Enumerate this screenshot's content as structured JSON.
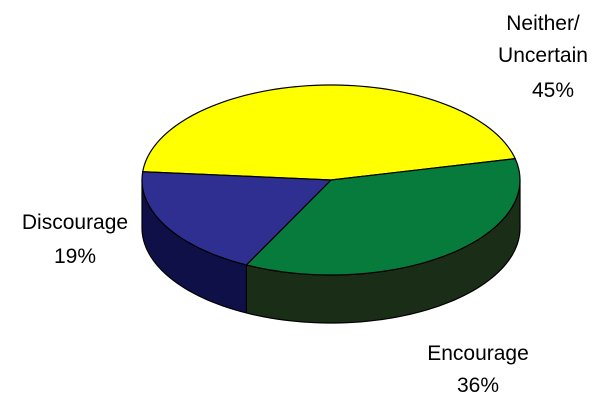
{
  "chart_data": {
    "type": "pie",
    "style": "3d",
    "slices": [
      {
        "label_lines": [
          "Neither/",
          "Uncertain"
        ],
        "value_label": "45%",
        "value": 45,
        "color": "#ffff00",
        "side_color": "#b3b300"
      },
      {
        "label_lines": [
          "Encourage"
        ],
        "value_label": "36%",
        "value": 36,
        "color": "#067b3c",
        "side_color": "#1a2e17"
      },
      {
        "label_lines": [
          "Discourage"
        ],
        "value_label": "19%",
        "value": 19,
        "color": "#2e2f91",
        "side_color": "#101049"
      }
    ],
    "legend": "none"
  }
}
